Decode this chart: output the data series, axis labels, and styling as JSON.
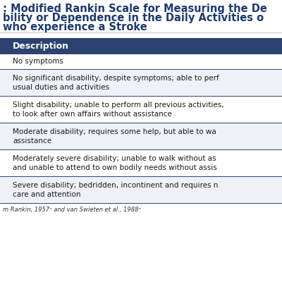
{
  "title_line1": ": Modified Rankin Scale for Measuring the De",
  "title_line2": "bility or Dependence in the Daily Activities o",
  "title_line3": "who experience a Stroke",
  "title_color": "#1e3a6e",
  "title_fontsize": 10.5,
  "header_label": "Description",
  "header_bg": "#2c4270",
  "header_text_color": "#ffffff",
  "header_fontsize": 9.0,
  "body_fontsize": 7.5,
  "body_text_color": "#1a1a1a",
  "divider_color": "#2c4270",
  "bg_color": "#ffffff",
  "row_alt_bg": "#eef2f7",
  "footer_text": "m Rankin, 1957ⁿ and van Swieten et al., 1988ⁿ",
  "footer_fontsize": 6.0,
  "rows": [
    [
      "No symptoms"
    ],
    [
      "No significant disability, despite symptoms; able to perf",
      "usual duties and activities"
    ],
    [
      "Slight disability; unable to perform all previous activities,",
      "to look after own affairs without assistance"
    ],
    [
      "Moderate disability; requires some help, but able to wa",
      "assistance"
    ],
    [
      "Moderately severe disability; unable to walk without as",
      "and unable to attend to own bodily needs without assis"
    ],
    [
      "Severe disability; bedridden, incontinent and requires n",
      "care and attention"
    ]
  ],
  "fig_width": 4.0,
  "fig_height": 4.0,
  "dpi": 100
}
